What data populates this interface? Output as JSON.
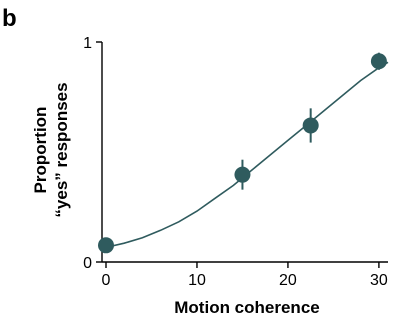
{
  "panel_label": "b",
  "chart_data": {
    "type": "scatter",
    "xlabel": "Motion coherence",
    "ylabel_lines": [
      "Proportion",
      "“yes” responses"
    ],
    "x_ticks": [
      0,
      10,
      20,
      30
    ],
    "y_ticks": [
      0,
      1
    ],
    "xlim": [
      0,
      31
    ],
    "ylim": [
      0,
      1
    ],
    "grid": false,
    "legend": "none",
    "colors": {
      "marker": "#2f5b5e",
      "axis": "#000000"
    },
    "points": [
      {
        "x": 0,
        "y": 0.05,
        "err": 0.01
      },
      {
        "x": 15,
        "y": 0.38,
        "err": 0.07
      },
      {
        "x": 22.5,
        "y": 0.61,
        "err": 0.08
      },
      {
        "x": 30,
        "y": 0.91,
        "err": 0.04
      }
    ],
    "fit_curve": {
      "x": [
        0,
        2,
        4,
        6,
        8,
        10,
        12,
        14,
        16,
        18,
        20,
        22,
        24,
        26,
        28,
        30,
        31
      ],
      "y": [
        0.04,
        0.06,
        0.085,
        0.12,
        0.16,
        0.21,
        0.27,
        0.33,
        0.4,
        0.47,
        0.54,
        0.61,
        0.68,
        0.75,
        0.82,
        0.88,
        0.905
      ]
    }
  }
}
